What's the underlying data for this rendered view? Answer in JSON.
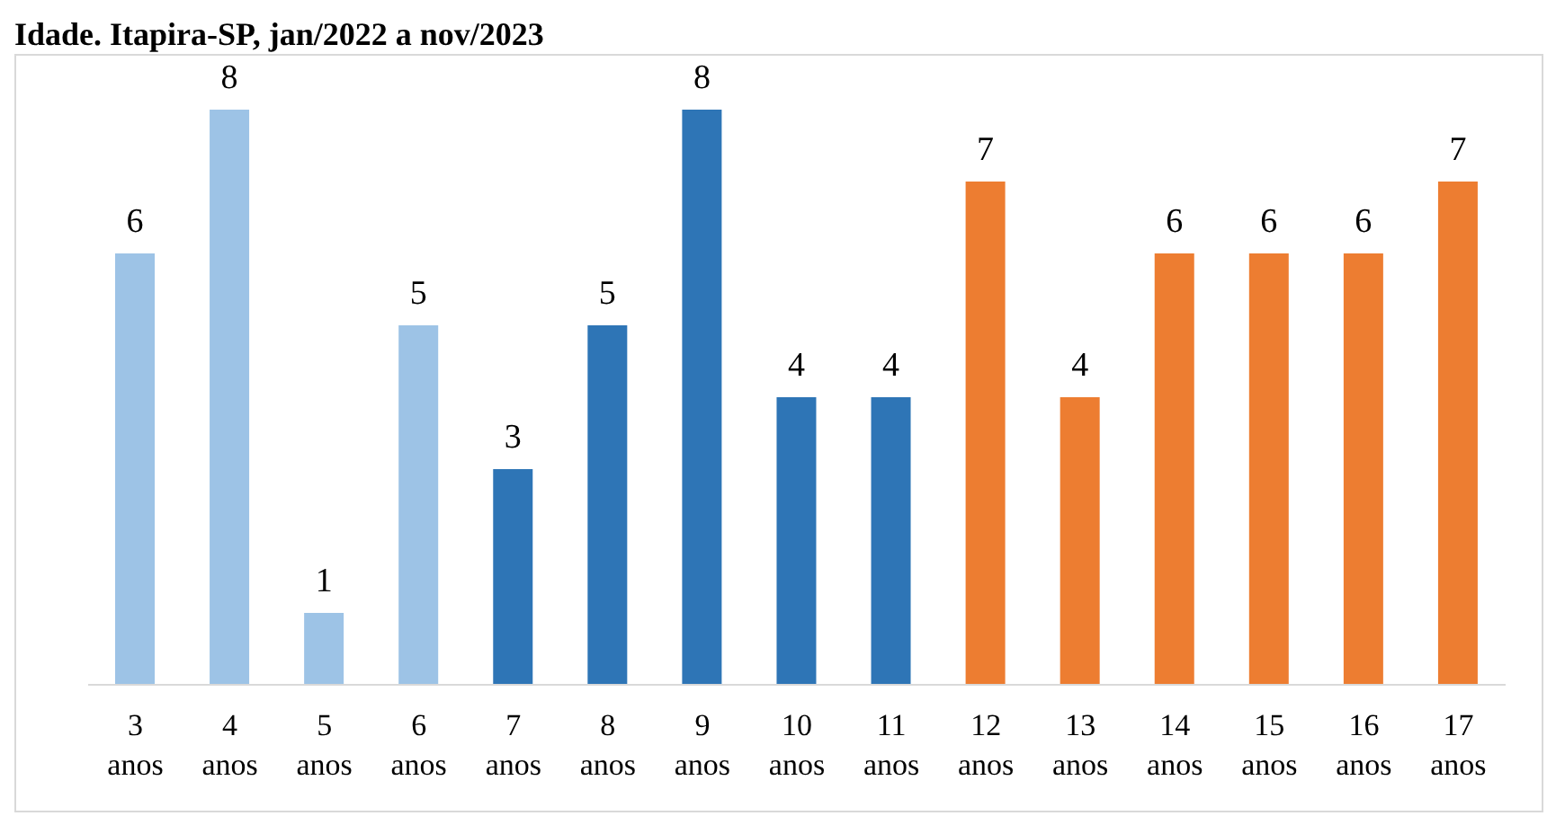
{
  "chart_data": {
    "type": "bar",
    "title": "Idade. Itapira-SP, jan/2022 a nov/2023",
    "categories": [
      "3 anos",
      "4 anos",
      "5 anos",
      "6 anos",
      "7 anos",
      "8 anos",
      "9 anos",
      "10 anos",
      "11 anos",
      "12 anos",
      "13 anos",
      "14 anos",
      "15 anos",
      "16 anos",
      "17 anos"
    ],
    "values": [
      6,
      8,
      1,
      5,
      3,
      5,
      8,
      4,
      4,
      7,
      4,
      6,
      6,
      6,
      7
    ],
    "colors": [
      "#9dc3e6",
      "#9dc3e6",
      "#9dc3e6",
      "#9dc3e6",
      "#2e75b6",
      "#2e75b6",
      "#2e75b6",
      "#2e75b6",
      "#2e75b6",
      "#ed7d31",
      "#ed7d31",
      "#ed7d31",
      "#ed7d31",
      "#ed7d31",
      "#ed7d31"
    ],
    "data_labels": true,
    "grid": false,
    "legend": false
  }
}
